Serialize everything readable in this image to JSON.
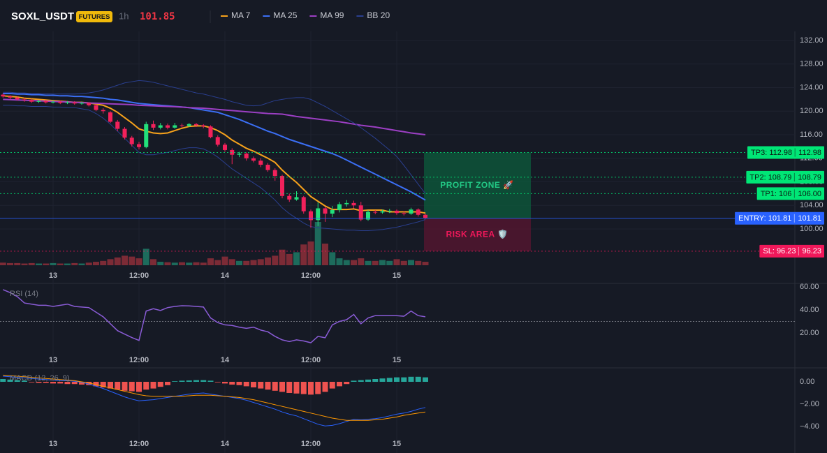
{
  "header": {
    "symbol": "SOXL_USDT",
    "badge": "FUTURES",
    "interval": "1h",
    "last_price": 101.85
  },
  "chart_data": [
    {
      "type": "candlestick",
      "xticks": [
        {
          "value": 7,
          "label": "13"
        },
        {
          "value": 19,
          "label": "12:00"
        },
        {
          "value": 31,
          "label": "14"
        },
        {
          "value": 43,
          "label": "12:00"
        },
        {
          "value": 55,
          "label": "15"
        }
      ],
      "ylim": [
        93.84,
        133.54
      ],
      "yticks": [
        {
          "value": 132,
          "label": "132.00"
        },
        {
          "value": 128,
          "label": "128.00"
        },
        {
          "value": 124,
          "label": "124.00"
        },
        {
          "value": 120,
          "label": "120.00"
        },
        {
          "value": 116,
          "label": "116.00"
        },
        {
          "value": 112,
          "label": "112.00"
        },
        {
          "value": 108,
          "label": "108.00"
        },
        {
          "value": 104,
          "label": "104.00"
        },
        {
          "value": 100,
          "label": "100.00"
        }
      ],
      "grid": true,
      "up_color": "#22e07a",
      "down_color": "#f2215b",
      "volume_up_color": "#1d6b5c",
      "volume_down_color": "#7c2b36",
      "open": [
        122.8,
        122.5,
        122.3,
        122.0,
        121.9,
        121.6,
        121.7,
        121.5,
        121.6,
        121.4,
        121.5,
        121.3,
        121.4,
        121.0,
        120.2,
        119.8,
        118.2,
        117.0,
        115.5,
        114.4,
        113.9,
        117.8,
        117.2,
        117.6,
        117.2,
        117.6,
        117.5,
        117.8,
        117.6,
        117.4,
        115.6,
        114.3,
        113.4,
        112.6,
        112.8,
        112.0,
        111.6,
        110.9,
        110.0,
        109.0,
        105.6,
        105.0,
        105.4,
        103.0,
        101.5,
        103.5,
        102.6,
        103.2,
        104.2,
        104.4,
        104.0,
        101.6,
        102.9,
        102.8,
        103.0,
        103.1,
        102.7,
        102.6,
        103.3,
        102.4
      ],
      "high": [
        123.0,
        122.7,
        122.5,
        122.3,
        122.1,
        121.9,
        121.9,
        121.8,
        121.8,
        121.7,
        121.7,
        121.6,
        121.5,
        121.2,
        120.5,
        120.0,
        118.5,
        117.3,
        115.8,
        114.8,
        118.2,
        118.4,
        118.0,
        117.9,
        118.0,
        117.9,
        118.0,
        118.0,
        117.8,
        117.6,
        115.9,
        114.6,
        113.7,
        113.1,
        113.0,
        112.3,
        112.0,
        111.2,
        110.3,
        109.2,
        106.0,
        106.4,
        105.6,
        103.3,
        104.5,
        103.8,
        103.9,
        104.6,
        104.9,
        104.8,
        104.6,
        103.2,
        103.2,
        103.3,
        103.4,
        103.3,
        103.0,
        103.6,
        103.5,
        102.6
      ],
      "low": [
        122.3,
        122.0,
        121.8,
        121.6,
        121.4,
        121.4,
        121.3,
        121.3,
        121.2,
        121.2,
        121.1,
        121.1,
        120.8,
        120.0,
        119.6,
        118.0,
        116.6,
        115.2,
        114.0,
        113.5,
        113.7,
        116.8,
        116.9,
        116.9,
        117.0,
        117.2,
        117.3,
        117.3,
        117.1,
        115.4,
        114.0,
        113.1,
        111.0,
        112.2,
        111.6,
        111.3,
        110.5,
        109.7,
        108.2,
        105.2,
        104.6,
        104.8,
        102.6,
        100.2,
        100.5,
        101.2,
        102.0,
        102.8,
        103.8,
        103.5,
        101.3,
        101.4,
        102.5,
        102.6,
        102.7,
        102.4,
        102.3,
        102.4,
        102.1,
        101.7
      ],
      "close": [
        122.5,
        122.3,
        122.0,
        121.9,
        121.6,
        121.7,
        121.5,
        121.6,
        121.4,
        121.5,
        121.3,
        121.4,
        121.0,
        120.2,
        120.0,
        118.2,
        117.0,
        115.5,
        114.4,
        113.9,
        117.8,
        117.2,
        117.6,
        117.2,
        117.6,
        117.5,
        117.8,
        117.6,
        117.4,
        115.6,
        114.3,
        113.4,
        112.6,
        112.8,
        112.0,
        111.6,
        110.9,
        110.0,
        109.0,
        105.6,
        105.0,
        105.4,
        103.0,
        101.5,
        103.5,
        102.6,
        103.2,
        104.2,
        104.4,
        104.0,
        101.6,
        102.9,
        102.8,
        103.0,
        103.1,
        102.7,
        102.6,
        103.3,
        102.4,
        101.9
      ],
      "volume": [
        6,
        5,
        5,
        4,
        5,
        4,
        4,
        5,
        4,
        4,
        5,
        4,
        6,
        8,
        10,
        14,
        18,
        22,
        20,
        16,
        38,
        14,
        8,
        7,
        6,
        7,
        6,
        7,
        6,
        16,
        12,
        20,
        14,
        10,
        10,
        12,
        14,
        18,
        22,
        36,
        26,
        30,
        48,
        55,
        100,
        50,
        30,
        16,
        12,
        12,
        16,
        10,
        10,
        12,
        10,
        14,
        10,
        12,
        10,
        8
      ],
      "volume_ylim": [
        0,
        100
      ],
      "series": [
        {
          "name": "MA 7",
          "color": "#f7a21b",
          "values": [
            122.6,
            122.5,
            122.4,
            122.2,
            122.1,
            122.0,
            121.9,
            121.8,
            121.7,
            121.6,
            121.5,
            121.5,
            121.4,
            121.2,
            121.0,
            120.5,
            119.8,
            118.9,
            118.0,
            117.0,
            116.6,
            116.3,
            116.2,
            116.3,
            116.7,
            117.1,
            117.4,
            117.5,
            117.5,
            117.2,
            116.7,
            116.0,
            115.1,
            114.4,
            113.7,
            113.2,
            112.6,
            112.0,
            111.3,
            110.0,
            108.9,
            107.9,
            106.7,
            105.5,
            104.7,
            103.9,
            103.3,
            103.3,
            103.3,
            103.4,
            103.1,
            103.2,
            103.2,
            103.2,
            102.9,
            102.9,
            102.9,
            102.9,
            102.9,
            102.7
          ]
        },
        {
          "name": "MA 25",
          "color": "#3b6ff5",
          "values": [
            123.0,
            123.0,
            122.9,
            122.9,
            122.8,
            122.8,
            122.7,
            122.7,
            122.6,
            122.6,
            122.5,
            122.5,
            122.4,
            122.3,
            122.2,
            122.0,
            121.9,
            121.7,
            121.5,
            121.3,
            121.2,
            121.1,
            121.0,
            120.9,
            120.8,
            120.7,
            120.6,
            120.4,
            120.2,
            120.0,
            119.8,
            119.4,
            119.0,
            118.6,
            118.1,
            117.6,
            117.1,
            116.6,
            116.2,
            115.7,
            115.2,
            114.8,
            114.4,
            114.0,
            113.6,
            113.2,
            112.8,
            112.3,
            111.7,
            111.1,
            110.5,
            109.9,
            109.3,
            108.7,
            108.1,
            107.5,
            106.9,
            106.3,
            105.6,
            104.9
          ]
        },
        {
          "name": "MA 99",
          "color": "#9c3fc4",
          "values": [
            122.0,
            121.95,
            121.9,
            121.85,
            121.8,
            121.75,
            121.7,
            121.65,
            121.6,
            121.55,
            121.5,
            121.45,
            121.4,
            121.35,
            121.3,
            121.25,
            121.2,
            121.15,
            121.1,
            121.0,
            120.95,
            120.9,
            120.85,
            120.8,
            120.75,
            120.7,
            120.6,
            120.55,
            120.5,
            120.4,
            120.3,
            120.2,
            120.1,
            120.0,
            119.9,
            119.8,
            119.7,
            119.6,
            119.55,
            119.5,
            119.3,
            119.1,
            118.95,
            118.8,
            118.65,
            118.5,
            118.35,
            118.2,
            118.0,
            117.8,
            117.6,
            117.45,
            117.3,
            117.1,
            116.9,
            116.7,
            116.5,
            116.3,
            116.15,
            116.0
          ]
        },
        {
          "name": "BB 20",
          "color": "#2a3f8f",
          "upper": [
            123.2,
            123.2,
            123.1,
            123.1,
            123.0,
            123.0,
            123.0,
            122.9,
            122.9,
            122.9,
            122.9,
            123.0,
            123.1,
            123.3,
            123.6,
            124.0,
            124.4,
            124.8,
            125.0,
            125.2,
            125.1,
            124.9,
            124.6,
            124.3,
            124.0,
            123.7,
            123.4,
            123.1,
            122.9,
            122.6,
            122.3,
            122.0,
            121.6,
            121.3,
            121.0,
            120.9,
            121.0,
            121.4,
            121.8,
            122.0,
            122.2,
            122.3,
            122.3,
            122.0,
            121.4,
            120.8,
            120.1,
            119.4,
            118.7,
            118.0,
            117.2,
            116.3,
            115.4,
            114.4,
            113.4,
            112.3,
            110.8,
            109.2,
            107.6,
            106.0
          ],
          "lower": [
            121.0,
            121.0,
            120.9,
            120.9,
            120.8,
            120.8,
            120.8,
            120.7,
            120.7,
            120.6,
            120.6,
            120.4,
            120.2,
            119.6,
            118.8,
            117.8,
            116.6,
            115.4,
            114.2,
            113.0,
            112.6,
            112.6,
            112.8,
            113.0,
            113.3,
            113.6,
            113.8,
            113.8,
            113.6,
            113.0,
            112.2,
            111.2,
            110.2,
            109.4,
            108.6,
            107.8,
            107.0,
            106.0,
            104.9,
            103.6,
            102.6,
            101.8,
            101.0,
            100.4,
            100.2,
            100.1,
            100.0,
            99.9,
            99.8,
            99.8,
            99.7,
            99.7,
            99.8,
            99.9,
            100.1,
            100.3,
            100.6,
            100.9,
            101.2,
            101.6
          ]
        }
      ],
      "levels": [
        {
          "label": "TP3: 112.98",
          "value": 112.98,
          "color": "#00e676",
          "text_color": "#0b1a12",
          "style": "dotted"
        },
        {
          "label": "TP2: 108.79",
          "value": 108.79,
          "color": "#00e676",
          "text_color": "#0b1a12",
          "style": "dotted"
        },
        {
          "label": "TP1: 106",
          "value": 106,
          "value_label": "106.00",
          "color": "#00e676",
          "text_color": "#0b1a12",
          "style": "dotted"
        },
        {
          "label": "ENTRY: 101.81",
          "value": 101.81,
          "color": "#2962ff",
          "text_color": "#ffffff",
          "style": "solid"
        },
        {
          "label": "SL: 96.23",
          "value": 96.23,
          "color": "#f0185a",
          "text_color": "#ffffff",
          "style": "dotted"
        }
      ],
      "zones": [
        {
          "label": "PROFIT ZONE 🚀",
          "range": [
            101.81,
            112.98
          ],
          "color": "#0c5c3c",
          "text_color": "#22c985"
        },
        {
          "label": "RISK AREA 🛡️",
          "range": [
            96.23,
            101.81
          ],
          "color": "#5a1630",
          "text_color": "#f0185a"
        }
      ]
    },
    {
      "type": "line",
      "title": "RSI (14)",
      "color": "#8a5cd6",
      "ylim": [
        5,
        63
      ],
      "yticks": [
        {
          "value": 60,
          "label": "60.00"
        },
        {
          "value": 40,
          "label": "40.00"
        },
        {
          "value": 20,
          "label": "20.00"
        }
      ],
      "reference_line": 30,
      "values": [
        57.6,
        55,
        51.5,
        46,
        45,
        44,
        44,
        43,
        44,
        45,
        43,
        42.5,
        42,
        38,
        34,
        28,
        22,
        19,
        16,
        13.5,
        39,
        41,
        39.5,
        42,
        43,
        43.6,
        43.5,
        43,
        42.5,
        33,
        29,
        27,
        26.5,
        25,
        24,
        25,
        22.5,
        21,
        17,
        14,
        12.5,
        14,
        13,
        11.5,
        17,
        15.8,
        27,
        30,
        31.5,
        36,
        28,
        33,
        35,
        35,
        35,
        35,
        34.5,
        39,
        35,
        34
      ]
    },
    {
      "type": "macd",
      "title": "MACD (12, 26, 9)",
      "ylim": [
        -4.9,
        1.05
      ],
      "yticks": [
        {
          "value": 0,
          "label": "0.00"
        },
        {
          "value": -2,
          "label": "−2.00"
        },
        {
          "value": -4,
          "label": "−4.00"
        }
      ],
      "positive_color": "#26a69a",
      "negative_color": "#ef5350",
      "histogram": [
        0.25,
        0.2,
        0.15,
        0.1,
        -0.05,
        -0.1,
        -0.1,
        -0.15,
        -0.15,
        -0.2,
        -0.2,
        -0.25,
        -0.3,
        -0.4,
        -0.5,
        -0.6,
        -0.7,
        -0.8,
        -0.85,
        -0.9,
        -0.7,
        -0.6,
        -0.45,
        -0.3,
        0.05,
        0.1,
        0.12,
        0.15,
        0.15,
        0.1,
        -0.05,
        -0.15,
        -0.25,
        -0.3,
        -0.4,
        -0.5,
        -0.6,
        -0.7,
        -0.8,
        -0.9,
        -1.0,
        -1.05,
        -1.1,
        -1.15,
        -1.1,
        -0.9,
        -0.6,
        -0.4,
        -0.2,
        0.1,
        0.15,
        0.2,
        0.25,
        0.3,
        0.35,
        0.4,
        0.4,
        0.45,
        0.45,
        0.4
      ],
      "series": [
        {
          "color": "#2962ff",
          "values": [
            0.5,
            0.45,
            0.4,
            0.35,
            0.3,
            0.25,
            0.2,
            0.15,
            0.1,
            0.1,
            0.05,
            -0.05,
            -0.2,
            -0.4,
            -0.6,
            -0.85,
            -1.1,
            -1.35,
            -1.55,
            -1.7,
            -1.65,
            -1.6,
            -1.5,
            -1.4,
            -1.3,
            -1.2,
            -1.1,
            -1.05,
            -1.0,
            -1.1,
            -1.2,
            -1.3,
            -1.4,
            -1.5,
            -1.65,
            -1.85,
            -2.05,
            -2.25,
            -2.45,
            -2.7,
            -2.9,
            -3.05,
            -3.3,
            -3.55,
            -3.8,
            -3.95,
            -3.9,
            -3.75,
            -3.55,
            -3.35,
            -3.4,
            -3.35,
            -3.3,
            -3.2,
            -3.05,
            -2.9,
            -2.8,
            -2.65,
            -2.45,
            -2.3
          ]
        },
        {
          "color": "#ff9800",
          "values": [
            0.6,
            0.55,
            0.5,
            0.45,
            0.4,
            0.35,
            0.3,
            0.25,
            0.2,
            0.15,
            0.1,
            0.0,
            -0.1,
            -0.25,
            -0.4,
            -0.55,
            -0.7,
            -0.85,
            -1.0,
            -1.15,
            -1.25,
            -1.3,
            -1.3,
            -1.3,
            -1.3,
            -1.3,
            -1.25,
            -1.2,
            -1.2,
            -1.2,
            -1.25,
            -1.3,
            -1.35,
            -1.4,
            -1.5,
            -1.6,
            -1.75,
            -1.9,
            -2.05,
            -2.2,
            -2.35,
            -2.5,
            -2.65,
            -2.8,
            -2.95,
            -3.1,
            -3.25,
            -3.35,
            -3.45,
            -3.45,
            -3.45,
            -3.45,
            -3.4,
            -3.35,
            -3.25,
            -3.15,
            -3.0,
            -2.9,
            -2.8,
            -2.7
          ]
        }
      ]
    }
  ]
}
